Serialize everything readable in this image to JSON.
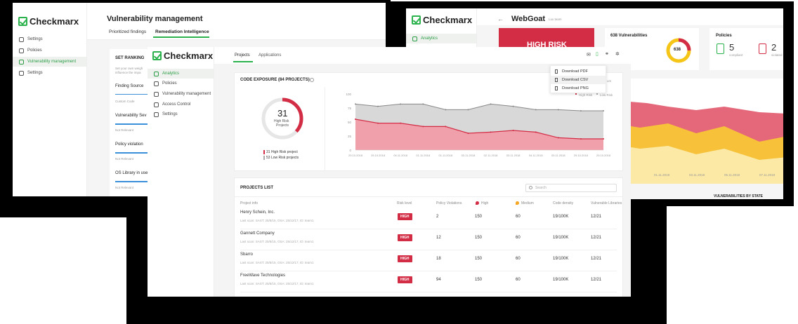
{
  "brand": "Checkmarx",
  "left_window": {
    "title": "Vulnerability management",
    "tabs": [
      "Prioritized findings",
      "Remediation Intelligence"
    ],
    "active_tab": 1,
    "nav": [
      "Settings",
      "Policies",
      "Vulnerability management",
      "Settings"
    ],
    "section_title": "SET RANKING",
    "section_desc_1": "Set your own weigh",
    "section_desc_2": "influence the impa",
    "filters": [
      {
        "label": "Finding Source",
        "value": "Custom Code"
      },
      {
        "label": "Vulnerability Sev",
        "value": "Not Relevant"
      },
      {
        "label": "Policy violation",
        "value": "Not Relevant"
      },
      {
        "label": "OS Library in use",
        "value": "Not Relevant"
      }
    ]
  },
  "right_window": {
    "title": "WebGoat",
    "subtitle": "Lux team",
    "nav": [
      "Analytics"
    ],
    "risk_label": "HIGH RISK",
    "vuln_title": "638 Vulnerabilities",
    "vuln_total": "638",
    "policies_title": "Policies",
    "policy_compliant_count": "5",
    "policy_compliant_label": "compliant",
    "policy_violated_count": "2",
    "policy_violated_label": "violated",
    "x_ticks": [
      "01.11.2018",
      "03.11.2018",
      "05.11.2018",
      "07.11.2018"
    ],
    "bottom_label": "VULNERABILITIES BY STATE",
    "colors": {
      "red": "#d32d45",
      "yellow": "#f5c518",
      "ring_gray": "#e6e6e6"
    }
  },
  "front_window": {
    "nav": [
      "Analytics",
      "Policies",
      "Vulnerability management",
      "Access Control",
      "Settings"
    ],
    "tabs": [
      "Projects",
      "Applications"
    ],
    "active_tab": 0,
    "toolbar_icons": [
      "mail-icon",
      "file-icon",
      "link-icon",
      "gear-icon"
    ],
    "export_menu": [
      "Download PDF",
      "Download CSV",
      "Download PNG"
    ],
    "export_selected": 1,
    "exposure_title": "CODE EXPOSURE (84 PROJECTS)",
    "donut_value": "31",
    "donut_caption_1": "High Risk",
    "donut_caption_2": "Projects",
    "donut_fraction_high": 0.369,
    "legend_high": "31 High Risk project",
    "legend_low": "53 Low Risk projects",
    "chart_legend_high": "High Risk",
    "chart_legend_low": "Low Risk",
    "chart_filter": "um",
    "projects_title": "PROJECTS LIST",
    "search_placeholder": "Search",
    "columns": [
      "Project info",
      "Risk level",
      "Policy Violations",
      "High",
      "Medium",
      "Code density",
      "Vulnerable Libraries"
    ],
    "rows": [
      {
        "name": "Henry Schein, Inc.",
        "scan": "Last scan: SAST: 25/8/15,  OSA: 25/12/17,  ID: team1",
        "risk": "HIGH",
        "violations": "2",
        "high": "150",
        "medium": "60",
        "density": "19/100K",
        "libs": "12/21"
      },
      {
        "name": "Gannett Company",
        "scan": "Last scan: SAST: 25/8/15,  OSA: 25/12/17,  ID: team1",
        "risk": "HIGH",
        "violations": "12",
        "high": "150",
        "medium": "60",
        "density": "19/100K",
        "libs": "12/21"
      },
      {
        "name": "Sbarro",
        "scan": "Last scan: SAST: 25/8/15,  OSA: 25/12/17,  ID: team1",
        "risk": "HIGH",
        "violations": "18",
        "high": "150",
        "medium": "60",
        "density": "19/100K",
        "libs": "12/21"
      },
      {
        "name": "FreeWave Technologies",
        "scan": "Last scan: SAST: 25/8/15,  OSA: 25/12/17,  ID: team1",
        "risk": "HIGH",
        "violations": "94",
        "high": "150",
        "medium": "60",
        "density": "19/100K",
        "libs": "12/21"
      }
    ],
    "colors": {
      "accent": "#2bb24c",
      "high": "#d32d45",
      "high_fill": "#f0a0ab",
      "low_fill": "#d8d8d8"
    }
  },
  "chart_data": {
    "type": "area",
    "x": [
      "29.10.2018",
      "29.10.2018",
      "04.11.2018",
      "01.11.2018",
      "01.11.2018",
      "03.11.2018",
      "02.11.2018",
      "03.11.2018",
      "04.11.2018",
      "03.11.2018",
      "29.10.2018",
      "29.10.2018"
    ],
    "ylim": [
      0,
      100
    ],
    "yticks": [
      0,
      25,
      50,
      75,
      100
    ],
    "series": [
      {
        "name": "High Risk",
        "values": [
          55,
          48,
          48,
          42,
          42,
          30,
          32,
          35,
          32,
          22,
          20,
          20
        ]
      },
      {
        "name": "Low Risk",
        "values": [
          82,
          78,
          82,
          82,
          72,
          72,
          82,
          78,
          72,
          72,
          70,
          70
        ]
      }
    ],
    "grid": false
  }
}
